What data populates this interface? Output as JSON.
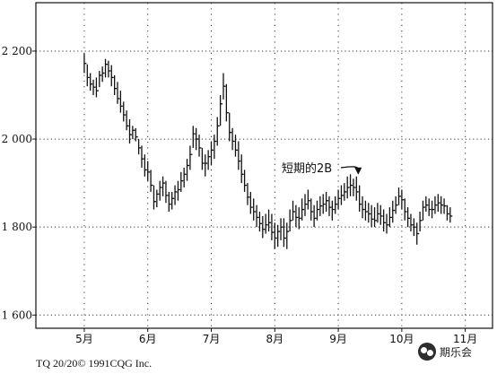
{
  "chart_data": {
    "type": "ohlc",
    "y_axis": {
      "ticks": [
        1600,
        1800,
        2000,
        2200
      ],
      "tick_labels": [
        "1 600",
        "1 800",
        "2 000",
        "2 200"
      ],
      "ylim": [
        1570,
        2310
      ]
    },
    "x_axis": {
      "ticks": [
        0,
        21,
        42,
        63,
        84,
        105,
        126
      ],
      "tick_labels": [
        "5月",
        "6月",
        "7月",
        "8月",
        "9月",
        "10月",
        "11月"
      ],
      "xlim": [
        -16,
        135
      ]
    },
    "grid": {
      "horizontal_dotted": true,
      "vertical_dotted": true
    },
    "annotation": {
      "text": "短期的2B",
      "index": 90,
      "price": 1915
    },
    "series": [
      {
        "bars": [
          [
            2195,
            2150,
            2172
          ],
          [
            2170,
            2120,
            2140
          ],
          [
            2150,
            2110,
            2125
          ],
          [
            2135,
            2100,
            2118
          ],
          [
            2140,
            2095,
            2110
          ],
          [
            2155,
            2118,
            2145
          ],
          [
            2165,
            2130,
            2150
          ],
          [
            2182,
            2140,
            2170
          ],
          [
            2178,
            2140,
            2155
          ],
          [
            2168,
            2120,
            2140
          ],
          [
            2145,
            2100,
            2115
          ],
          [
            2130,
            2080,
            2092
          ],
          [
            2110,
            2060,
            2075
          ],
          [
            2085,
            2040,
            2055
          ],
          [
            2065,
            2020,
            2030
          ],
          [
            2045,
            1990,
            2010
          ],
          [
            2030,
            2000,
            2020
          ],
          [
            2025,
            1995,
            2005
          ],
          [
            2000,
            1965,
            1980
          ],
          [
            1985,
            1935,
            1955
          ],
          [
            1965,
            1915,
            1930
          ],
          [
            1950,
            1905,
            1925
          ],
          [
            1930,
            1880,
            1895
          ],
          [
            1895,
            1840,
            1858
          ],
          [
            1885,
            1845,
            1875
          ],
          [
            1905,
            1860,
            1890
          ],
          [
            1915,
            1870,
            1900
          ],
          [
            1905,
            1855,
            1872
          ],
          [
            1880,
            1835,
            1852
          ],
          [
            1880,
            1840,
            1865
          ],
          [
            1895,
            1850,
            1880
          ],
          [
            1905,
            1860,
            1885
          ],
          [
            1925,
            1880,
            1905
          ],
          [
            1935,
            1890,
            1920
          ],
          [
            1955,
            1905,
            1940
          ],
          [
            1985,
            1930,
            1965
          ],
          [
            2030,
            1980,
            2012
          ],
          [
            2025,
            1975,
            2000
          ],
          [
            2010,
            1960,
            1980
          ],
          [
            1980,
            1930,
            1945
          ],
          [
            1965,
            1915,
            1945
          ],
          [
            1975,
            1930,
            1960
          ],
          [
            1995,
            1940,
            1975
          ],
          [
            2010,
            1955,
            1995
          ],
          [
            2050,
            1985,
            2030
          ],
          [
            2100,
            2030,
            2080
          ],
          [
            2150,
            2090,
            2120
          ],
          [
            2125,
            2040,
            2060
          ],
          [
            2060,
            1995,
            2015
          ],
          [
            2025,
            1975,
            1995
          ],
          [
            2010,
            1960,
            1975
          ],
          [
            1995,
            1930,
            1950
          ],
          [
            1965,
            1900,
            1920
          ],
          [
            1930,
            1880,
            1895
          ],
          [
            1900,
            1850,
            1868
          ],
          [
            1880,
            1830,
            1845
          ],
          [
            1865,
            1815,
            1835
          ],
          [
            1850,
            1800,
            1822
          ],
          [
            1835,
            1790,
            1808
          ],
          [
            1825,
            1775,
            1795
          ],
          [
            1830,
            1785,
            1805
          ],
          [
            1840,
            1790,
            1810
          ],
          [
            1830,
            1770,
            1788
          ],
          [
            1810,
            1750,
            1775
          ],
          [
            1805,
            1755,
            1790
          ],
          [
            1820,
            1770,
            1800
          ],
          [
            1820,
            1755,
            1775
          ],
          [
            1810,
            1750,
            1790
          ],
          [
            1840,
            1790,
            1815
          ],
          [
            1860,
            1815,
            1835
          ],
          [
            1850,
            1800,
            1822
          ],
          [
            1845,
            1795,
            1820
          ],
          [
            1865,
            1815,
            1840
          ],
          [
            1875,
            1825,
            1852
          ],
          [
            1885,
            1840,
            1860
          ],
          [
            1865,
            1815,
            1835
          ],
          [
            1850,
            1800,
            1820
          ],
          [
            1860,
            1815,
            1840
          ],
          [
            1870,
            1825,
            1848
          ],
          [
            1875,
            1830,
            1852
          ],
          [
            1880,
            1835,
            1860
          ],
          [
            1870,
            1825,
            1845
          ],
          [
            1860,
            1815,
            1840
          ],
          [
            1870,
            1830,
            1852
          ],
          [
            1885,
            1840,
            1865
          ],
          [
            1895,
            1850,
            1872
          ],
          [
            1900,
            1860,
            1880
          ],
          [
            1915,
            1865,
            1890
          ],
          [
            1920,
            1870,
            1895
          ],
          [
            1910,
            1870,
            1890
          ],
          [
            1915,
            1860,
            1880
          ],
          [
            1895,
            1835,
            1852
          ],
          [
            1870,
            1820,
            1840
          ],
          [
            1860,
            1815,
            1835
          ],
          [
            1855,
            1810,
            1830
          ],
          [
            1850,
            1800,
            1818
          ],
          [
            1845,
            1800,
            1815
          ],
          [
            1855,
            1810,
            1830
          ],
          [
            1850,
            1805,
            1825
          ],
          [
            1840,
            1790,
            1810
          ],
          [
            1830,
            1785,
            1805
          ],
          [
            1845,
            1800,
            1822
          ],
          [
            1860,
            1810,
            1838
          ],
          [
            1870,
            1830,
            1850
          ],
          [
            1890,
            1850,
            1870
          ],
          [
            1885,
            1840,
            1862
          ],
          [
            1865,
            1815,
            1835
          ],
          [
            1845,
            1800,
            1820
          ],
          [
            1830,
            1790,
            1805
          ],
          [
            1820,
            1780,
            1800
          ],
          [
            1810,
            1760,
            1785
          ],
          [
            1835,
            1790,
            1815
          ],
          [
            1860,
            1815,
            1845
          ],
          [
            1870,
            1835,
            1850
          ],
          [
            1865,
            1825,
            1840
          ],
          [
            1860,
            1820,
            1840
          ],
          [
            1870,
            1830,
            1850
          ],
          [
            1875,
            1835,
            1855
          ],
          [
            1870,
            1830,
            1850
          ],
          [
            1865,
            1830,
            1848
          ],
          [
            1850,
            1815,
            1830
          ],
          [
            1845,
            1810,
            1825
          ]
        ]
      }
    ]
  },
  "footer": {
    "text": "TQ 20/20© 1991CQG Inc."
  },
  "watermark": {
    "text": "期乐会"
  }
}
